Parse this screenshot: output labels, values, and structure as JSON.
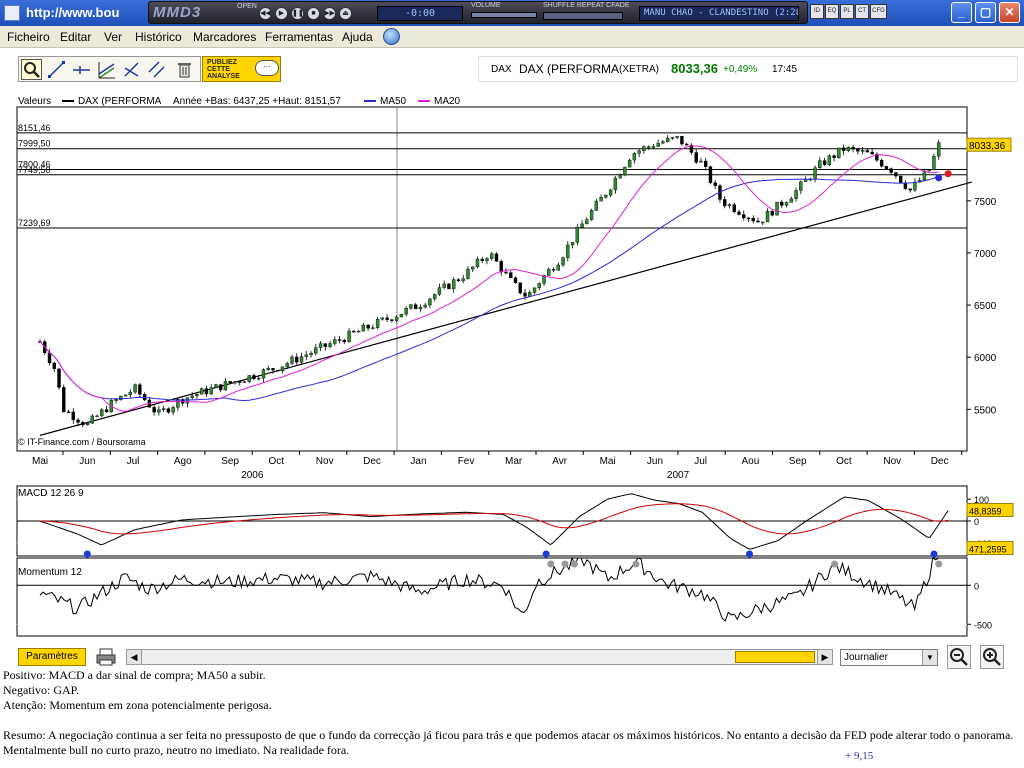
{
  "window": {
    "title": "http://www.bou",
    "buttons": {
      "minimize": "_",
      "maximize": "▢",
      "close": "✕"
    }
  },
  "player": {
    "logo": "MMD3",
    "open_label": "OPEN",
    "volume_label": "VOLUME",
    "modes_label": "SHUFFLE REPEAT CFADE",
    "time": "-0:00",
    "track": "MANU CHAO - CLANDESTINO (2:28)",
    "mini_buttons": [
      "ID",
      "EQ",
      "PL",
      "CT",
      "CFG"
    ]
  },
  "menu": {
    "items": [
      "Ficheiro",
      "Editar",
      "Ver",
      "Histórico",
      "Marcadores",
      "Ferramentas",
      "Ajuda"
    ]
  },
  "toolbar": {
    "tools": [
      "zoom-tool-icon",
      "trendline-icon",
      "horizontal-line-icon",
      "channel-icon",
      "fibonacci-icon",
      "parallel-lines-icon",
      "trash-icon"
    ],
    "publish_label": "PUBLIEZ\nCETTE\nANALYSE",
    "publish_bubble": "···"
  },
  "quote": {
    "code": "DAX",
    "name": "DAX (PERFORMA",
    "exchange": "(XETRA)",
    "price": "8033,36",
    "change": "+0,49%",
    "time": "17:45"
  },
  "colors": {
    "up": "#2e8b2e",
    "down": "#000000",
    "ma50": "#2a2ad8",
    "ma20": "#e020d0",
    "signal": "#d00000"
  },
  "chart_data": [
    {
      "type": "candlestick",
      "legend": {
        "label": "Valeurs",
        "series_name": "DAX (PERFORMA",
        "range_text": "Année +Bas: 6437,25 +Haut: 8151,57",
        "ma50": "MA50",
        "ma20": "MA20"
      },
      "y_levels": [
        {
          "label": "8151,46",
          "value": 8151.46
        },
        {
          "label": "7999,50",
          "value": 7999.5
        },
        {
          "label": "7800,46",
          "value": 7800.46
        },
        {
          "label": "7749,50",
          "value": 7749.5
        },
        {
          "label": "7239,69",
          "value": 7239.69
        }
      ],
      "yticks": [
        5500,
        6000,
        6500,
        7000,
        7500
      ],
      "ylim": [
        5100,
        8400
      ],
      "last_value": "8033,36",
      "months": [
        "Mai",
        "Jun",
        "Jul",
        "Ago",
        "Sep",
        "Oct",
        "Nov",
        "Dec",
        "Jan",
        "Fev",
        "Mar",
        "Avr",
        "Mai",
        "Jun",
        "Jul",
        "Aou",
        "Sep",
        "Oct",
        "Nov",
        "Dec"
      ],
      "years": [
        {
          "label": "2006",
          "index": 4
        },
        {
          "label": "2007",
          "index": 13
        }
      ],
      "anchors": [
        [
          0,
          6150
        ],
        [
          0.3,
          5900
        ],
        [
          0.5,
          5500
        ],
        [
          1.0,
          5350
        ],
        [
          1.5,
          5550
        ],
        [
          2.0,
          5700
        ],
        [
          2.5,
          5450
        ],
        [
          3.0,
          5600
        ],
        [
          4.0,
          5750
        ],
        [
          5.0,
          5900
        ],
        [
          6.0,
          6100
        ],
        [
          7.0,
          6300
        ],
        [
          8.0,
          6500
        ],
        [
          8.5,
          6650
        ],
        [
          9.0,
          6800
        ],
        [
          9.5,
          7000
        ],
        [
          10.0,
          6700
        ],
        [
          10.3,
          6580
        ],
        [
          10.6,
          6750
        ],
        [
          11.0,
          6950
        ],
        [
          11.5,
          7300
        ],
        [
          12.0,
          7600
        ],
        [
          12.5,
          7950
        ],
        [
          13.0,
          8050
        ],
        [
          13.5,
          8100
        ],
        [
          14.0,
          7850
        ],
        [
          14.4,
          7500
        ],
        [
          14.8,
          7400
        ],
        [
          15.2,
          7300
        ],
        [
          15.6,
          7450
        ],
        [
          16.0,
          7600
        ],
        [
          16.5,
          7850
        ],
        [
          17.0,
          8000
        ],
        [
          17.5,
          7950
        ],
        [
          18.0,
          7800
        ],
        [
          18.4,
          7600
        ],
        [
          18.8,
          7800
        ],
        [
          19.0,
          8033
        ]
      ],
      "trendline": [
        [
          0,
          5250
        ],
        [
          19.7,
          7680
        ]
      ],
      "source": "© IT-Finance.com / Boursorama"
    },
    {
      "type": "line",
      "title": "MACD 12 26 9",
      "yticks": [
        {
          "label": "100",
          "value": 100
        },
        {
          "label": "0",
          "value": 0
        },
        {
          "label": "-100",
          "value": -100
        }
      ],
      "ylim": [
        -160,
        160
      ],
      "last_value": "48,8359",
      "anchors": [
        [
          0,
          0
        ],
        [
          0.8,
          -60
        ],
        [
          1.3,
          -110
        ],
        [
          2,
          -40
        ],
        [
          3,
          5
        ],
        [
          4,
          18
        ],
        [
          5,
          30
        ],
        [
          6,
          38
        ],
        [
          7,
          20
        ],
        [
          8,
          32
        ],
        [
          9,
          40
        ],
        [
          9.8,
          30
        ],
        [
          10.3,
          -30
        ],
        [
          10.8,
          -110
        ],
        [
          11.4,
          20
        ],
        [
          12,
          100
        ],
        [
          12.5,
          125
        ],
        [
          13,
          95
        ],
        [
          13.5,
          80
        ],
        [
          14,
          40
        ],
        [
          14.6,
          -80
        ],
        [
          15,
          -130
        ],
        [
          15.6,
          -90
        ],
        [
          16.2,
          0
        ],
        [
          17,
          110
        ],
        [
          17.5,
          95
        ],
        [
          18.2,
          10
        ],
        [
          18.8,
          -80
        ],
        [
          19.2,
          48
        ]
      ],
      "signal_dots": [
        1.0,
        10.7,
        15.0,
        18.9
      ]
    },
    {
      "type": "line",
      "title": "Momentum 12",
      "yticks": [
        {
          "label": "0",
          "value": 0
        },
        {
          "label": "-500",
          "value": -500
        }
      ],
      "ylim": [
        -650,
        350
      ],
      "last_value": "471,2595",
      "anchors": [
        [
          0,
          -100
        ],
        [
          0.8,
          -300
        ],
        [
          1.3,
          -100
        ],
        [
          1.8,
          100
        ],
        [
          2.3,
          -50
        ],
        [
          3,
          80
        ],
        [
          4,
          40
        ],
        [
          5,
          90
        ],
        [
          6,
          30
        ],
        [
          7,
          120
        ],
        [
          8,
          -80
        ],
        [
          9,
          80
        ],
        [
          9.8,
          0
        ],
        [
          10.2,
          -400
        ],
        [
          10.5,
          40
        ],
        [
          11,
          200
        ],
        [
          11.5,
          320
        ],
        [
          12,
          80
        ],
        [
          12.6,
          300
        ],
        [
          13.2,
          30
        ],
        [
          14,
          -100
        ],
        [
          14.6,
          -450
        ],
        [
          15.2,
          -300
        ],
        [
          16,
          -150
        ],
        [
          16.8,
          250
        ],
        [
          17.5,
          40
        ],
        [
          18,
          -100
        ],
        [
          18.5,
          -300
        ],
        [
          19,
          471
        ]
      ],
      "signal_dots": [
        10.8,
        11.1,
        11.3,
        12.6,
        16.8,
        19.0
      ]
    }
  ],
  "bottom": {
    "param_label": "Paramètres",
    "period": "Journalier",
    "scroll_left": "◀",
    "scroll_right": "▶",
    "period_arrow": "▼"
  },
  "comments": {
    "line1": "Positivo: MACD a dar sinal de compra; MA50 a subir.",
    "line2": "Negativo: GAP.",
    "line3": "Atenção: Momentum em zona potencialmente perigosa.",
    "resumo": "Resumo: A negociação continua a ser feita no pressuposto de que o fundo da correcção já ficou para trás e que podemos atacar os máximos históricos. No entanto a decisão da FED pode alterar todo o panorama. Mentalmente bull no curto prazo, neutro no imediato. Na realidade fora.",
    "change_note": "+ 9,15"
  }
}
